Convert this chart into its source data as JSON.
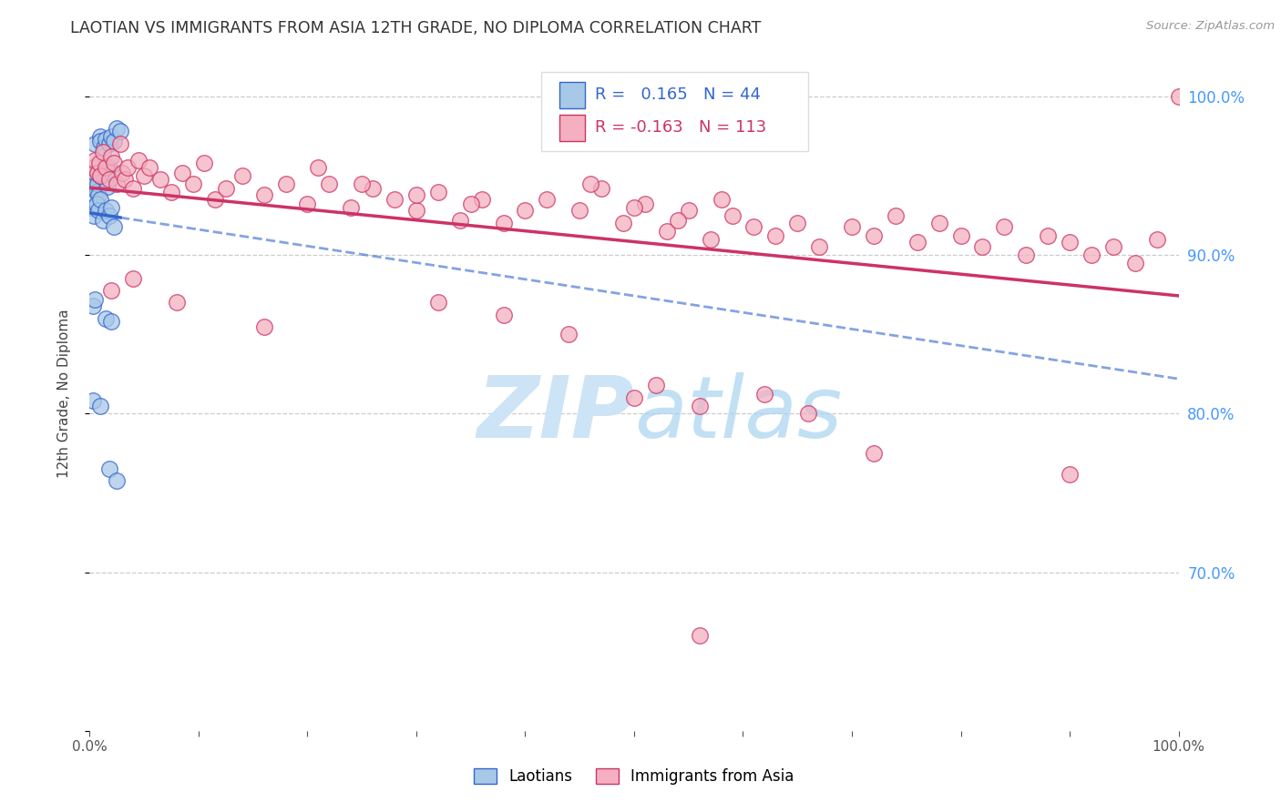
{
  "title": "LAOTIAN VS IMMIGRANTS FROM ASIA 12TH GRADE, NO DIPLOMA CORRELATION CHART",
  "source": "Source: ZipAtlas.com",
  "ylabel": "12th Grade, No Diploma",
  "legend_label_blue": "Laotians",
  "legend_label_pink": "Immigrants from Asia",
  "R_blue": 0.165,
  "N_blue": 44,
  "R_pink": -0.163,
  "N_pink": 113,
  "color_blue": "#a8c8e8",
  "color_pink": "#f4b0c0",
  "line_color_blue": "#3366cc",
  "line_color_pink": "#cc3366",
  "watermark_color": "#cce4f5",
  "title_color": "#333333",
  "source_color": "#999999",
  "tick_color_right": "#4499ff",
  "grid_color": "#cccccc",
  "bg_color": "#ffffff"
}
